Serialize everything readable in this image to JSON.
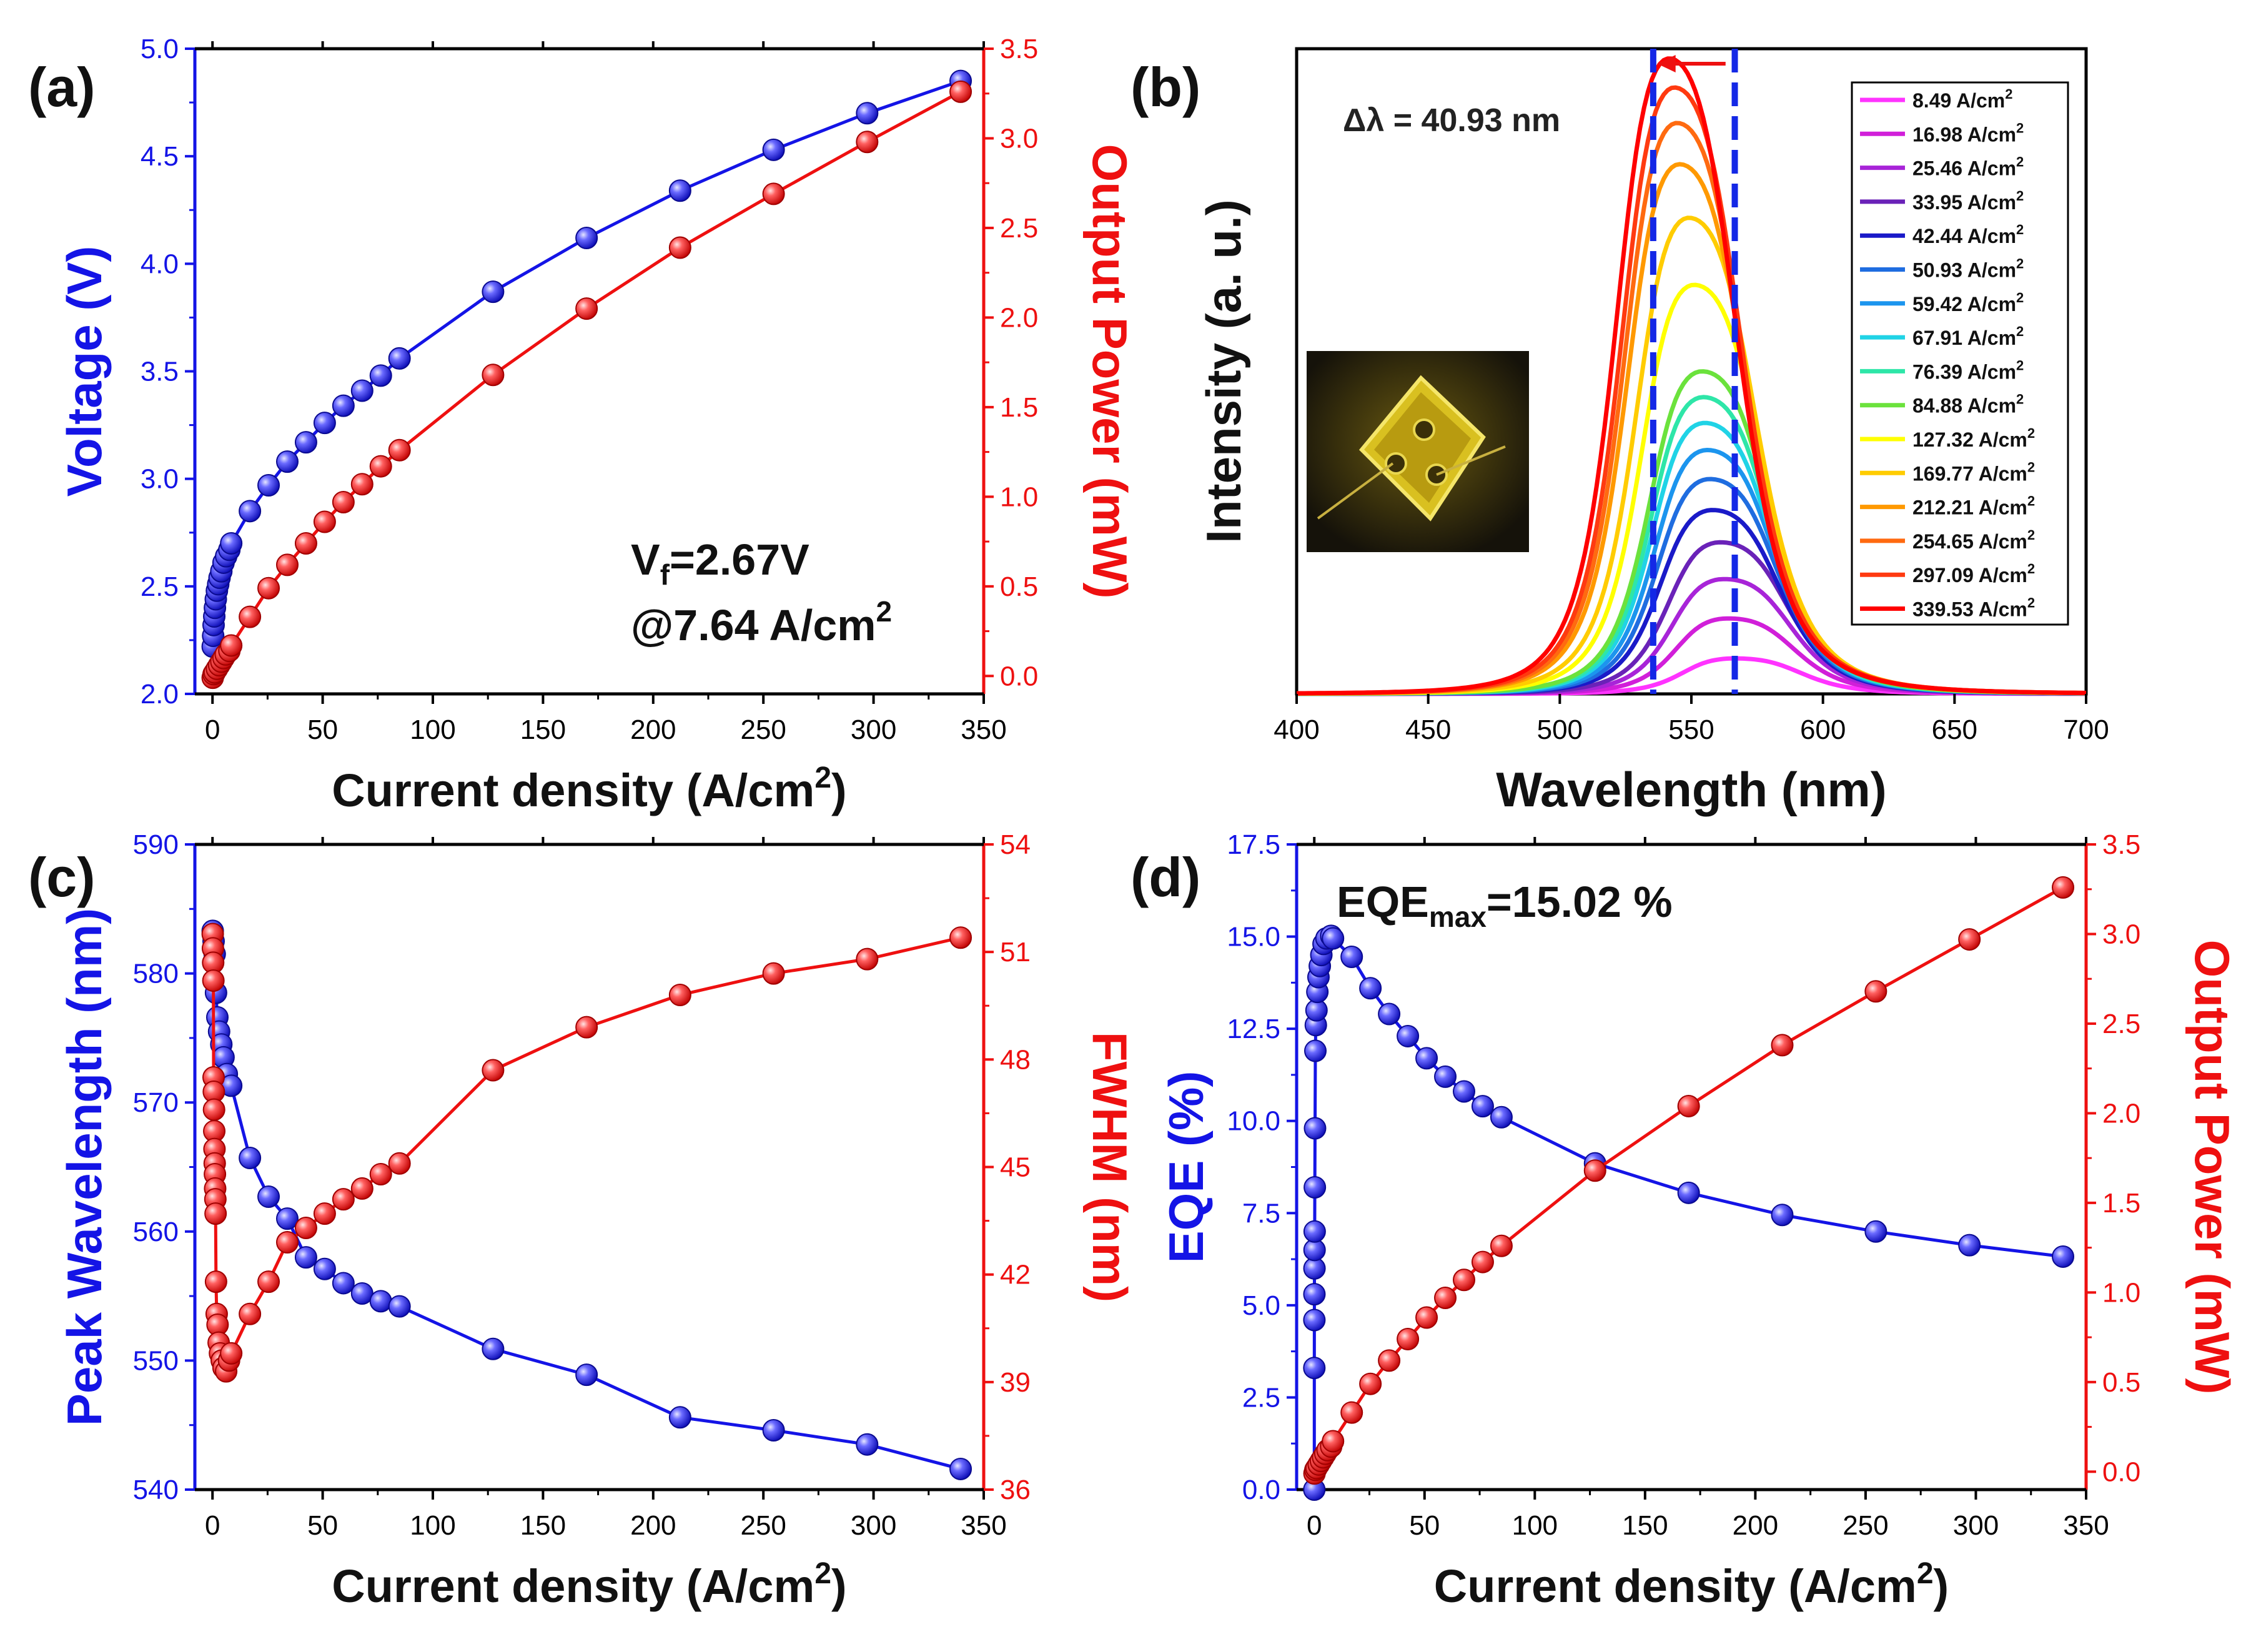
{
  "colors": {
    "blue": "#1414e6",
    "red": "#ee1010",
    "axis": "#000000"
  },
  "chart_data": [
    {
      "panel": "(a)",
      "type": "line",
      "xlabel": "Current density (A/cm2)",
      "xlabel_main": "Current density (A/cm",
      "xlabel_sup": "2",
      "xlabel_end": ")",
      "ylabel": "Voltage (V)",
      "y2label": "Output Power (mW)",
      "xlim": [
        -8,
        350
      ],
      "ylim": [
        2.0,
        5.0
      ],
      "y2lim": [
        -0.1,
        3.5
      ],
      "xticks": [
        "0",
        "50",
        "100",
        "150",
        "200",
        "250",
        "300",
        "350"
      ],
      "yticks": [
        "2.0",
        "2.5",
        "3.0",
        "3.5",
        "4.0",
        "4.5",
        "5.0"
      ],
      "y2ticks": [
        "0.0",
        "0.5",
        "1.0",
        "1.5",
        "2.0",
        "2.5",
        "3.0",
        "3.5"
      ],
      "annotation_line1_main": "V",
      "annotation_line1_sub": "f",
      "annotation_line1_end": "=2.67V",
      "annotation_line2": "@7.64 A/cm",
      "annotation_line2_sup": "2",
      "series": [
        {
          "axis": "left",
          "color": "blue",
          "x": [
            0.1,
            0.3,
            0.5,
            0.8,
            1.1,
            1.5,
            2,
            2.6,
            3.2,
            4,
            5,
            6.2,
            7.64,
            8.49,
            16.98,
            25.46,
            33.95,
            42.44,
            50.93,
            59.42,
            67.91,
            76.39,
            84.88,
            127.32,
            169.77,
            212.21,
            254.65,
            297.09,
            339.53
          ],
          "y": [
            2.22,
            2.27,
            2.32,
            2.36,
            2.4,
            2.44,
            2.48,
            2.51,
            2.54,
            2.57,
            2.61,
            2.64,
            2.67,
            2.7,
            2.85,
            2.97,
            3.08,
            3.17,
            3.26,
            3.34,
            3.41,
            3.48,
            3.56,
            3.87,
            4.12,
            4.34,
            4.53,
            4.7,
            4.85
          ]
        },
        {
          "axis": "right",
          "color": "red",
          "x": [
            0.1,
            0.5,
            1,
            2,
            3,
            4,
            5,
            6,
            7.64,
            8.49,
            16.98,
            25.46,
            33.95,
            42.44,
            50.93,
            59.42,
            67.91,
            76.39,
            84.88,
            127.32,
            169.77,
            212.21,
            254.65,
            297.09,
            339.53
          ],
          "y": [
            -0.01,
            0.01,
            0.02,
            0.04,
            0.06,
            0.08,
            0.1,
            0.12,
            0.14,
            0.17,
            0.33,
            0.49,
            0.62,
            0.74,
            0.86,
            0.97,
            1.07,
            1.17,
            1.26,
            1.68,
            2.05,
            2.39,
            2.69,
            2.98,
            3.26
          ]
        }
      ]
    },
    {
      "panel": "(b)",
      "type": "line",
      "xlabel": "Wavelength (nm)",
      "ylabel": "Intensity (a. u.)",
      "xlim": [
        400,
        700
      ],
      "xticks": [
        "400",
        "450",
        "500",
        "550",
        "600",
        "650",
        "700"
      ],
      "annotation": "Δλ = 40.93 nm",
      "dashed_lines_nm": [
        535.5,
        566.5
      ],
      "legend_unit": " A/cm",
      "legend_unit_sup": "2",
      "series": [
        {
          "name": "8.49",
          "color": "#ff33ff",
          "peak_nm": 566.5,
          "height": 0.055
        },
        {
          "name": "16.98",
          "color": "#d11fd9",
          "peak_nm": 564.0,
          "height": 0.117
        },
        {
          "name": "25.46",
          "color": "#a824d8",
          "peak_nm": 562.5,
          "height": 0.178
        },
        {
          "name": "33.95",
          "color": "#6a22b8",
          "peak_nm": 561.0,
          "height": 0.235
        },
        {
          "name": "42.44",
          "color": "#1a1ac8",
          "peak_nm": 558.0,
          "height": 0.285
        },
        {
          "name": "50.93",
          "color": "#1f6de0",
          "peak_nm": 557.0,
          "height": 0.333
        },
        {
          "name": "59.42",
          "color": "#1c95ee",
          "peak_nm": 556.0,
          "height": 0.378
        },
        {
          "name": "67.91",
          "color": "#20d3e6",
          "peak_nm": 555.0,
          "height": 0.42
        },
        {
          "name": "76.39",
          "color": "#2ee6a8",
          "peak_nm": 554.5,
          "height": 0.46
        },
        {
          "name": "84.88",
          "color": "#6be23c",
          "peak_nm": 554.0,
          "height": 0.5
        },
        {
          "name": "127.32",
          "color": "#ffff00",
          "peak_nm": 551.0,
          "height": 0.634
        },
        {
          "name": "169.77",
          "color": "#ffcc00",
          "peak_nm": 549.0,
          "height": 0.738
        },
        {
          "name": "212.21",
          "color": "#ff9900",
          "peak_nm": 545.5,
          "height": 0.821
        },
        {
          "name": "254.65",
          "color": "#ff6a10",
          "peak_nm": 544.5,
          "height": 0.885
        },
        {
          "name": "297.09",
          "color": "#ff3a10",
          "peak_nm": 543.5,
          "height": 0.94
        },
        {
          "name": "339.53",
          "color": "#ff0000",
          "peak_nm": 541.5,
          "height": 0.985
        }
      ]
    },
    {
      "panel": "(c)",
      "type": "line",
      "xlabel": "Current density (A/cm2)",
      "xlabel_main": "Current density (A/cm",
      "xlabel_sup": "2",
      "xlabel_end": ")",
      "ylabel": "Peak Wavelength (nm)",
      "y2label": "FWHM (nm)",
      "xlim": [
        -8,
        350
      ],
      "ylim": [
        540,
        590
      ],
      "y2lim": [
        36,
        54
      ],
      "xticks": [
        "0",
        "50",
        "100",
        "150",
        "200",
        "250",
        "300",
        "350"
      ],
      "yticks": [
        "540",
        "550",
        "560",
        "570",
        "580",
        "590"
      ],
      "y2ticks": [
        "36",
        "39",
        "42",
        "45",
        "48",
        "51",
        "54"
      ],
      "series": [
        {
          "axis": "left",
          "color": "blue",
          "x": [
            0.1,
            0.5,
            1,
            1.6,
            2.2,
            3,
            4,
            5,
            6.5,
            8.49,
            16.98,
            25.46,
            33.95,
            42.44,
            50.93,
            59.42,
            67.91,
            76.39,
            84.88,
            127.32,
            169.77,
            212.21,
            254.65,
            297.09,
            339.53
          ],
          "y": [
            583.3,
            582.5,
            581.5,
            578.5,
            576.6,
            575.5,
            574.5,
            573.5,
            572.2,
            571.3,
            565.7,
            562.7,
            561.0,
            558.0,
            557.1,
            556.0,
            555.2,
            554.6,
            554.2,
            550.9,
            548.9,
            545.6,
            544.6,
            543.5,
            541.6
          ]
        },
        {
          "axis": "right",
          "color": "red",
          "x": [
            0.1,
            0.2,
            0.3,
            0.4,
            0.5,
            0.6,
            0.7,
            0.8,
            0.9,
            1.0,
            1.1,
            1.2,
            1.3,
            1.4,
            1.6,
            1.9,
            2.3,
            2.8,
            3.4,
            4.2,
            5,
            6.2,
            7.5,
            8.49,
            16.98,
            25.46,
            33.95,
            42.44,
            50.93,
            59.42,
            67.91,
            76.39,
            84.88,
            127.32,
            169.77,
            212.21,
            254.65,
            297.09,
            339.53
          ],
          "y": [
            51.5,
            51.1,
            50.7,
            50.2,
            47.5,
            47.1,
            46.6,
            46.0,
            45.5,
            45.1,
            44.8,
            44.4,
            44.1,
            43.7,
            41.8,
            40.9,
            40.6,
            40.1,
            39.8,
            39.6,
            39.4,
            39.3,
            39.6,
            39.8,
            40.9,
            41.8,
            42.9,
            43.3,
            43.7,
            44.1,
            44.4,
            44.8,
            45.1,
            47.7,
            48.9,
            49.8,
            50.4,
            50.8,
            51.4
          ]
        }
      ]
    },
    {
      "panel": "(d)",
      "type": "line",
      "xlabel": "Current density (A/cm2)",
      "xlabel_main": "Current density (A/cm",
      "xlabel_sup": "2",
      "xlabel_end": ")",
      "ylabel": "EQE (%)",
      "y2label": "Output Power (mW)",
      "xlim": [
        -8,
        350
      ],
      "ylim": [
        0,
        17.5
      ],
      "y2lim": [
        -0.1,
        3.5
      ],
      "xticks": [
        "0",
        "50",
        "100",
        "150",
        "200",
        "250",
        "300",
        "350"
      ],
      "yticks": [
        "0.0",
        "2.5",
        "5.0",
        "7.5",
        "10.0",
        "12.5",
        "15.0",
        "17.5"
      ],
      "y2ticks": [
        "0.0",
        "0.5",
        "1.0",
        "1.5",
        "2.0",
        "2.5",
        "3.0",
        "3.5"
      ],
      "annotation_main": "EQE",
      "annotation_sub": "max",
      "annotation_end": "=15.02 %",
      "series": [
        {
          "axis": "left",
          "color": "blue",
          "x": [
            0.01,
            0.02,
            0.04,
            0.06,
            0.09,
            0.13,
            0.18,
            0.25,
            0.35,
            0.5,
            0.7,
            1,
            1.4,
            1.9,
            2.5,
            3.2,
            4.2,
            5.5,
            7.64,
            8.49,
            16.98,
            25.46,
            33.95,
            42.44,
            50.93,
            59.42,
            67.91,
            76.39,
            84.88,
            127.32,
            169.77,
            212.21,
            254.65,
            297.09,
            339.53
          ],
          "y": [
            0.0,
            3.3,
            4.6,
            5.3,
            6.0,
            6.5,
            7.0,
            8.2,
            9.8,
            11.9,
            12.6,
            13.0,
            13.5,
            13.9,
            14.2,
            14.5,
            14.8,
            14.95,
            15.02,
            14.95,
            14.45,
            13.6,
            12.9,
            12.3,
            11.7,
            11.2,
            10.8,
            10.4,
            10.1,
            8.85,
            8.05,
            7.45,
            7.0,
            6.63,
            6.32
          ]
        },
        {
          "axis": "right",
          "color": "red",
          "x": [
            0.1,
            0.5,
            1,
            2,
            3,
            4,
            5,
            6,
            7.64,
            8.49,
            16.98,
            25.46,
            33.95,
            42.44,
            50.93,
            59.42,
            67.91,
            76.39,
            84.88,
            127.32,
            169.77,
            212.21,
            254.65,
            297.09,
            339.53
          ],
          "y": [
            -0.01,
            0.01,
            0.02,
            0.04,
            0.06,
            0.08,
            0.1,
            0.12,
            0.14,
            0.17,
            0.33,
            0.49,
            0.62,
            0.74,
            0.86,
            0.97,
            1.07,
            1.17,
            1.26,
            1.68,
            2.04,
            2.38,
            2.68,
            2.97,
            3.26
          ]
        }
      ]
    }
  ]
}
